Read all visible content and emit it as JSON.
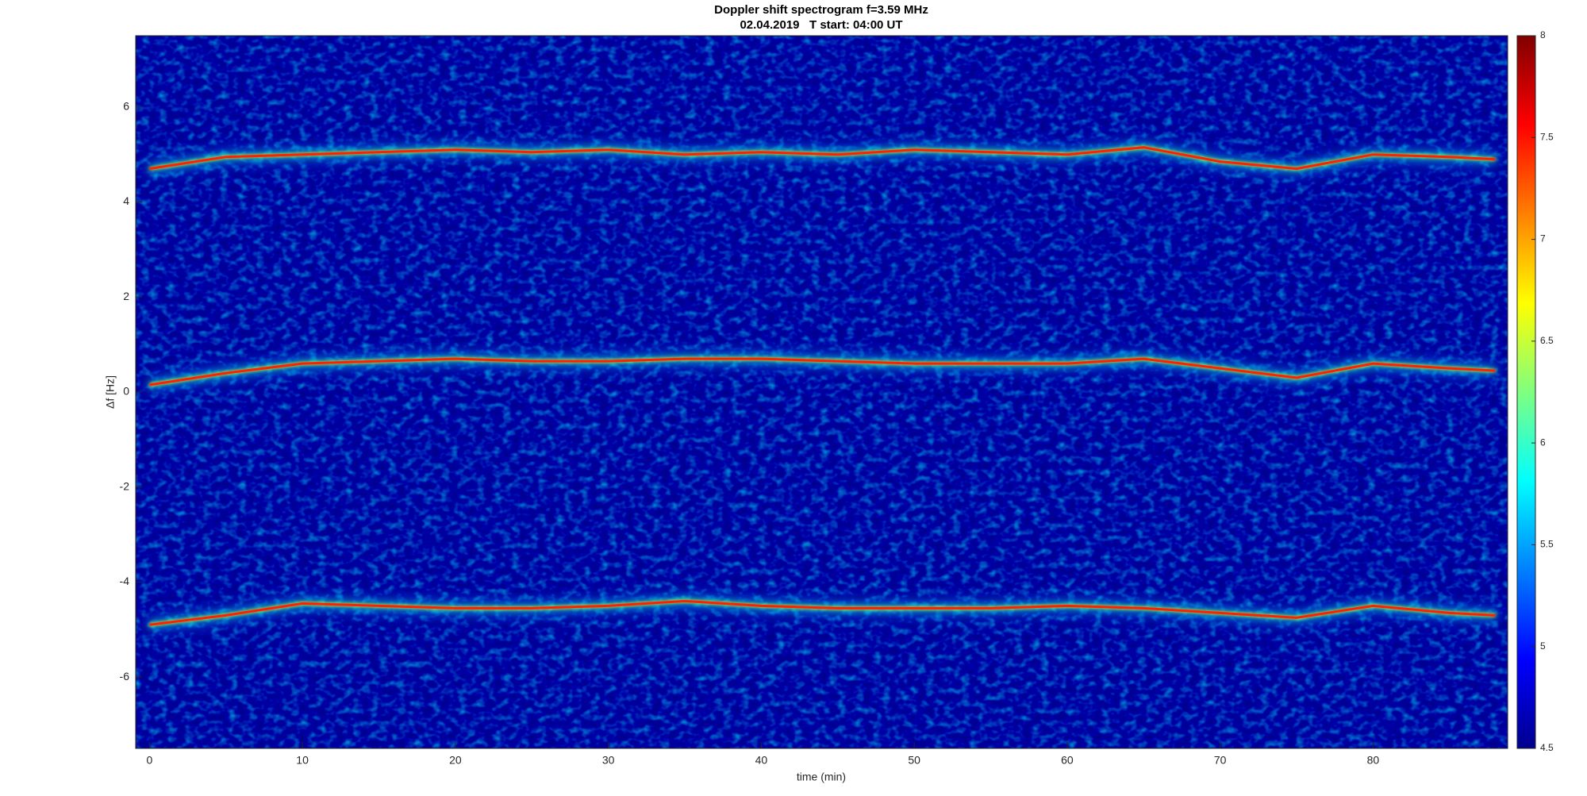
{
  "chart_data": {
    "type": "spectrogram",
    "title": "Doppler shift spectrogram f=3.59 MHz",
    "subtitle": "02.04.2019   T start: 04:00 UT",
    "x_label": "time (min)",
    "y_label": "Δf [Hz]",
    "x": [
      0,
      5,
      10,
      15,
      20,
      25,
      30,
      35,
      40,
      45,
      50,
      55,
      60,
      65,
      70,
      75,
      80,
      85,
      88
    ],
    "series": [
      {
        "color": "#ff2000",
        "values": [
          4.7,
          4.95,
          5.0,
          5.05,
          5.1,
          5.05,
          5.1,
          5.0,
          5.05,
          5.0,
          5.1,
          5.05,
          5.0,
          5.15,
          4.85,
          4.7,
          5.0,
          4.95,
          4.9
        ]
      },
      {
        "color": "#ff2000",
        "values": [
          0.15,
          0.4,
          0.6,
          0.65,
          0.7,
          0.65,
          0.65,
          0.7,
          0.7,
          0.65,
          0.6,
          0.6,
          0.6,
          0.7,
          0.5,
          0.3,
          0.6,
          0.5,
          0.45
        ]
      },
      {
        "color": "#ff2000",
        "values": [
          -4.9,
          -4.7,
          -4.45,
          -4.5,
          -4.55,
          -4.55,
          -4.5,
          -4.4,
          -4.5,
          -4.55,
          -4.55,
          -4.55,
          -4.5,
          -4.55,
          -4.65,
          -4.75,
          -4.5,
          -4.65,
          -4.7
        ]
      }
    ],
    "xlim": [
      -0.9,
      88.8
    ],
    "xticks": [
      0,
      10,
      20,
      30,
      40,
      50,
      60,
      70,
      80
    ],
    "ylim": [
      -7.5,
      7.5
    ],
    "yticks": [
      -6,
      -4,
      -2,
      0,
      2,
      4,
      6
    ],
    "colorbar": {
      "colormap": "jet",
      "lim": [
        4.5,
        8
      ],
      "ticks": [
        4.5,
        5,
        5.5,
        6,
        6.5,
        7,
        7.5,
        8
      ]
    }
  }
}
